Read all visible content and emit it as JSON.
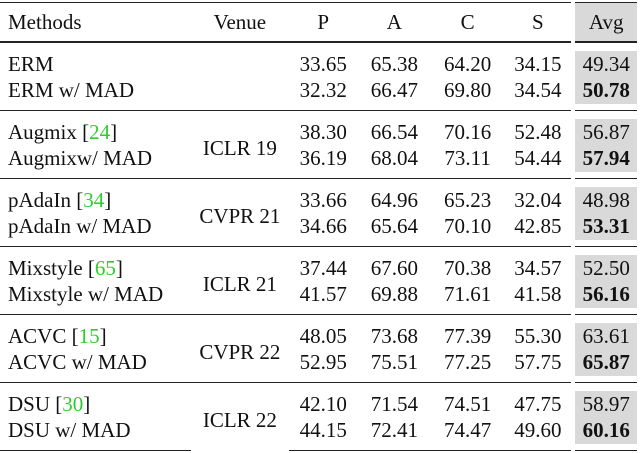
{
  "table": {
    "header": [
      "Methods",
      "Venue",
      "P",
      "A",
      "C",
      "S",
      "Avg"
    ],
    "groups": [
      {
        "venue": null,
        "rows": [
          {
            "method": "ERM",
            "cite": null,
            "values": [
              "33.65",
              "65.38",
              "64.20",
              "34.15",
              "49.34"
            ],
            "bold_avg": false
          },
          {
            "method": "ERM w/ MAD",
            "cite": null,
            "values": [
              "32.32",
              "66.47",
              "69.80",
              "34.54",
              "50.78"
            ],
            "bold_avg": true
          }
        ]
      },
      {
        "venue": "ICLR 19",
        "rows": [
          {
            "method": "Augmix",
            "cite": "24",
            "values": [
              "38.30",
              "66.54",
              "70.16",
              "52.48",
              "56.87"
            ],
            "bold_avg": false
          },
          {
            "method": "Augmixw/ MAD",
            "cite": null,
            "values": [
              "36.19",
              "68.04",
              "73.11",
              "54.44",
              "57.94"
            ],
            "bold_avg": true
          }
        ]
      },
      {
        "venue": "CVPR 21",
        "rows": [
          {
            "method": "pAdaIn",
            "cite": "34",
            "values": [
              "33.66",
              "64.96",
              "65.23",
              "32.04",
              "48.98"
            ],
            "bold_avg": false
          },
          {
            "method": "pAdaIn w/ MAD",
            "cite": null,
            "values": [
              "34.66",
              "65.64",
              "70.10",
              "42.85",
              "53.31"
            ],
            "bold_avg": true
          }
        ]
      },
      {
        "venue": "ICLR 21",
        "rows": [
          {
            "method": "Mixstyle",
            "cite": "65",
            "values": [
              "37.44",
              "67.60",
              "70.38",
              "34.57",
              "52.50"
            ],
            "bold_avg": false
          },
          {
            "method": "Mixstyle w/ MAD",
            "cite": null,
            "values": [
              "41.57",
              "69.88",
              "71.61",
              "41.58",
              "56.16"
            ],
            "bold_avg": true
          }
        ]
      },
      {
        "venue": "CVPR 22",
        "rows": [
          {
            "method": "ACVC",
            "cite": "15",
            "values": [
              "48.05",
              "73.68",
              "77.39",
              "55.30",
              "63.61"
            ],
            "bold_avg": false
          },
          {
            "method": "ACVC w/ MAD",
            "cite": null,
            "values": [
              "52.95",
              "75.51",
              "77.25",
              "57.75",
              "65.87"
            ],
            "bold_avg": true
          }
        ]
      },
      {
        "venue": "ICLR 22",
        "rows": [
          {
            "method": "DSU",
            "cite": "30",
            "values": [
              "42.10",
              "71.54",
              "74.51",
              "47.75",
              "58.97"
            ],
            "bold_avg": false
          },
          {
            "method": "DSU w/ MAD",
            "cite": null,
            "values": [
              "44.15",
              "72.41",
              "74.47",
              "49.60",
              "60.16"
            ],
            "bold_avg": true
          }
        ]
      }
    ]
  }
}
